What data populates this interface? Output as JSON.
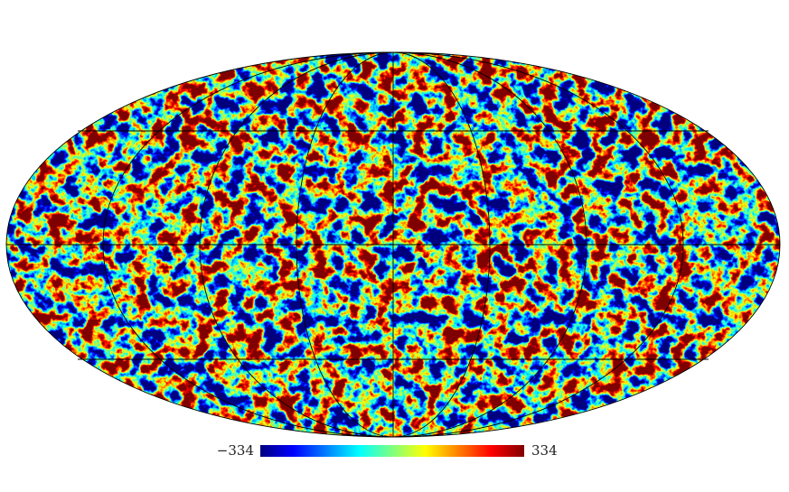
{
  "colorbar": {
    "min": {
      "value": -334,
      "label": "−334"
    },
    "max": 334,
    "colormap": "jet"
  }
}
